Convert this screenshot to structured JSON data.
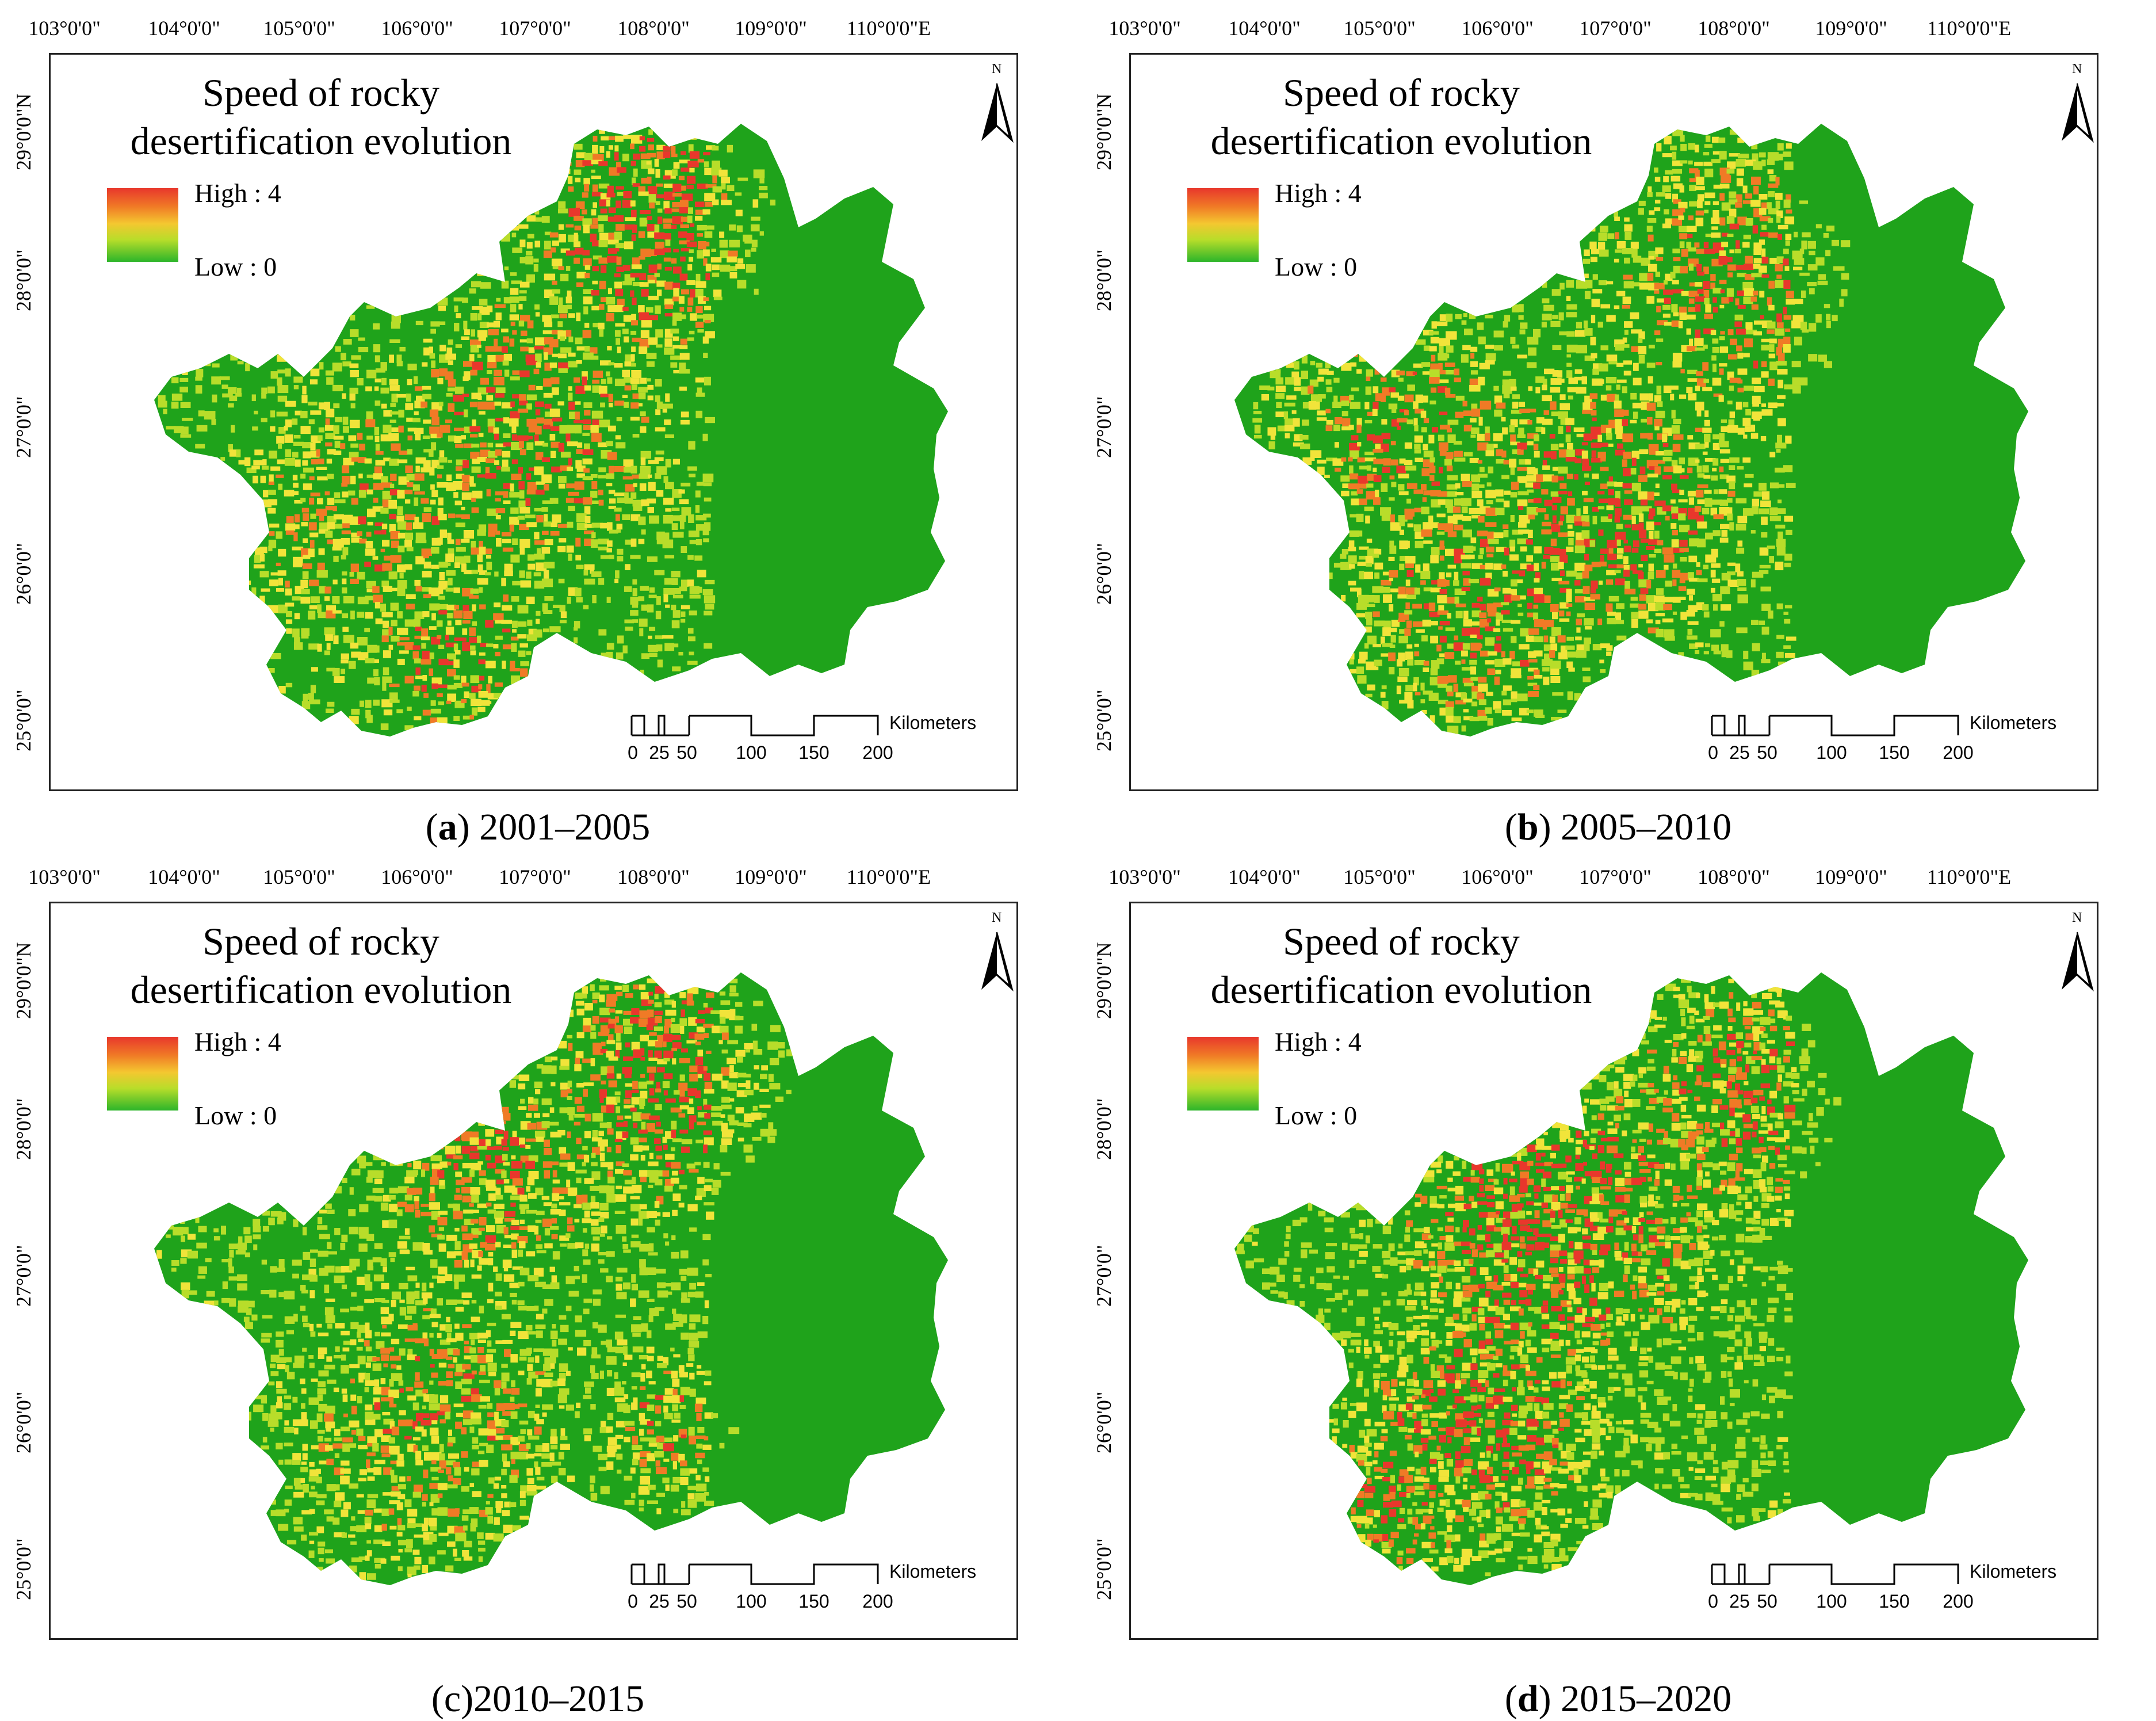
{
  "figure": {
    "colors": {
      "green": "#1fa31b",
      "yellow_green": "#b8dd2a",
      "yellow": "#f1e43a",
      "orange": "#f07a26",
      "red": "#e8372c"
    },
    "panels": [
      {
        "letter": "a",
        "caption_suffix": " 2001–2005",
        "legend_title": "Speed of rocky\ndesertification evolution",
        "legend_high": "High : 4",
        "legend_low": "Low : 0",
        "lon_ticks": [
          "103°0'0\"",
          "104°0'0\"",
          "105°0'0\"",
          "106°0'0\"",
          "107°0'0\"",
          "108°0'0\"",
          "109°0'0\"",
          "110°0'0\"E"
        ],
        "lat_ticks": [
          "29°0'0\"N",
          "28°0'0\"",
          "27°0'0\"",
          "26°0'0\"",
          "25°0'0\""
        ],
        "scale_labels": [
          "0",
          "25",
          "50",
          "100",
          "150",
          "200"
        ],
        "scale_units": "Kilometers",
        "north_label": "N",
        "caption_format": "bold-letter"
      },
      {
        "letter": "b",
        "caption_suffix": " 2005–2010",
        "legend_title": "Speed of rocky\ndesertification evolution",
        "legend_high": "High : 4",
        "legend_low": "Low : 0",
        "lon_ticks": [
          "103°0'0\"",
          "104°0'0\"",
          "105°0'0\"",
          "106°0'0\"",
          "107°0'0\"",
          "108°0'0\"",
          "109°0'0\"",
          "110°0'0\"E"
        ],
        "lat_ticks": [
          "29°0'0\"N",
          "28°0'0\"",
          "27°0'0\"",
          "26°0'0\"",
          "25°0'0\""
        ],
        "scale_labels": [
          "0",
          "25",
          "50",
          "100",
          "150",
          "200"
        ],
        "scale_units": "Kilometers",
        "north_label": "N",
        "caption_format": "bold-letter"
      },
      {
        "letter": "c",
        "caption_suffix": "2010–2015",
        "legend_title": "Speed of rocky\ndesertification evolution",
        "legend_high": "High : 4",
        "legend_low": "Low : 0",
        "lon_ticks": [
          "103°0'0\"",
          "104°0'0\"",
          "105°0'0\"",
          "106°0'0\"",
          "107°0'0\"",
          "108°0'0\"",
          "109°0'0\"",
          "110°0'0\"E"
        ],
        "lat_ticks": [
          "29°0'0\"N",
          "28°0'0\"",
          "27°0'0\"",
          "26°0'0\"",
          "25°0'0\""
        ],
        "scale_labels": [
          "0",
          "25",
          "50",
          "100",
          "150",
          "200"
        ],
        "scale_units": "Kilometers",
        "north_label": "N",
        "caption_format": "plain-letter"
      },
      {
        "letter": "d",
        "caption_suffix": " 2015–2020",
        "legend_title": "Speed of rocky\ndesertification evolution",
        "legend_high": "High : 4",
        "legend_low": "Low : 0",
        "lon_ticks": [
          "103°0'0\"",
          "104°0'0\"",
          "105°0'0\"",
          "106°0'0\"",
          "107°0'0\"",
          "108°0'0\"",
          "109°0'0\"",
          "110°0'0\"E"
        ],
        "lat_ticks": [
          "29°0'0\"N",
          "28°0'0\"",
          "27°0'0\"",
          "26°0'0\"",
          "25°0'0\""
        ],
        "scale_labels": [
          "0",
          "25",
          "50",
          "100",
          "150",
          "200"
        ],
        "scale_units": "Kilometers",
        "north_label": "N",
        "caption_format": "bold-letter"
      }
    ]
  }
}
